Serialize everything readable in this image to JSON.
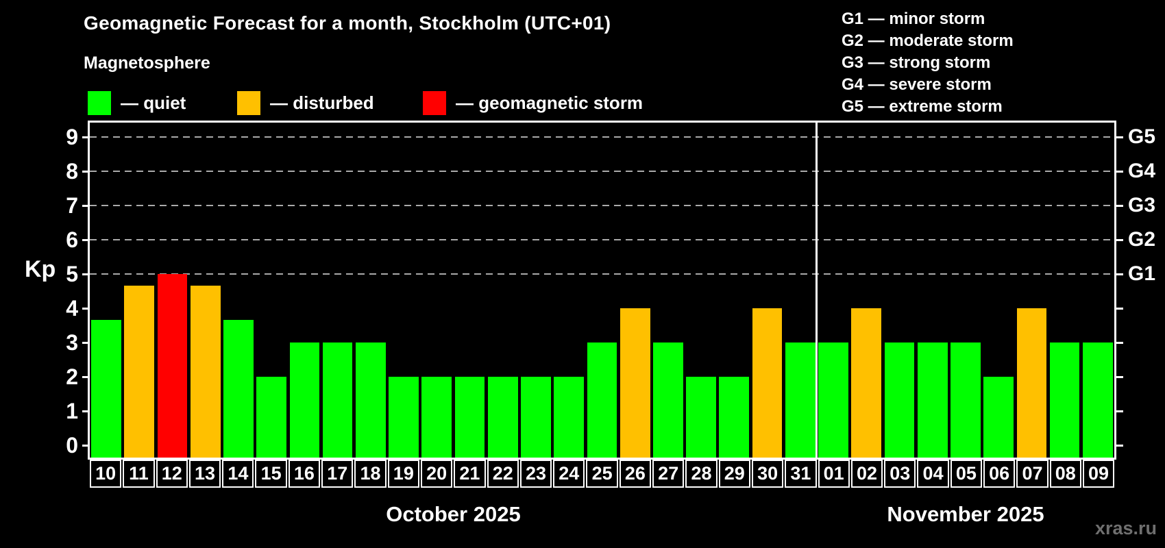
{
  "title": "Geomagnetic Forecast for a month, Stockholm (UTC+01)",
  "subtitle": "Magnetosphere",
  "legend": [
    {
      "label": "— quiet",
      "swatch_color": "#00ff00"
    },
    {
      "label": "— disturbed",
      "swatch_color": "#ffc000"
    },
    {
      "label": "— geomagnetic storm",
      "swatch_color": "#ff0000"
    }
  ],
  "g_legend": [
    "G1 — minor storm",
    "G2 — moderate storm",
    "G3 — strong storm",
    "G4 — severe storm",
    "G5 — extreme storm"
  ],
  "watermark": "xras.ru",
  "chart_data": {
    "type": "bar",
    "title": "Geomagnetic Forecast for a month, Stockholm (UTC+01)",
    "ylabel": "Kp",
    "ylim": [
      -0.36,
      9.42
    ],
    "y_ticks": [
      0,
      1,
      2,
      3,
      4,
      5,
      6,
      7,
      8,
      9
    ],
    "gridlines": [
      5,
      6,
      7,
      8,
      9
    ],
    "grid_color": "#aaaaaa",
    "right_axis": [
      {
        "label": "G1",
        "value": 5
      },
      {
        "label": "G2",
        "value": 6
      },
      {
        "label": "G3",
        "value": 7
      },
      {
        "label": "G4",
        "value": 8
      },
      {
        "label": "G5",
        "value": 9
      }
    ],
    "months": [
      {
        "label": "October 2025",
        "days": 22
      },
      {
        "label": "November 2025",
        "days": 9
      }
    ],
    "categories": [
      "10",
      "11",
      "12",
      "13",
      "14",
      "15",
      "16",
      "17",
      "18",
      "19",
      "20",
      "21",
      "22",
      "23",
      "24",
      "25",
      "26",
      "27",
      "28",
      "29",
      "30",
      "31",
      "01",
      "02",
      "03",
      "04",
      "05",
      "06",
      "07",
      "08",
      "09"
    ],
    "values": [
      3.67,
      4.67,
      5,
      4.67,
      3.67,
      2,
      3,
      3,
      3,
      2,
      2,
      2,
      2,
      2,
      2,
      3,
      4,
      3,
      2,
      2,
      4,
      3,
      3,
      4,
      3,
      3,
      3,
      2,
      4,
      3,
      3
    ],
    "status": [
      "quiet",
      "disturbed",
      "storm",
      "disturbed",
      "quiet",
      "quiet",
      "quiet",
      "quiet",
      "quiet",
      "quiet",
      "quiet",
      "quiet",
      "quiet",
      "quiet",
      "quiet",
      "quiet",
      "disturbed",
      "quiet",
      "quiet",
      "quiet",
      "disturbed",
      "quiet",
      "quiet",
      "disturbed",
      "quiet",
      "quiet",
      "quiet",
      "quiet",
      "disturbed",
      "quiet",
      "quiet"
    ],
    "status_colors": {
      "quiet": "#00ff00",
      "disturbed": "#ffc000",
      "storm": "#ff0000"
    }
  }
}
